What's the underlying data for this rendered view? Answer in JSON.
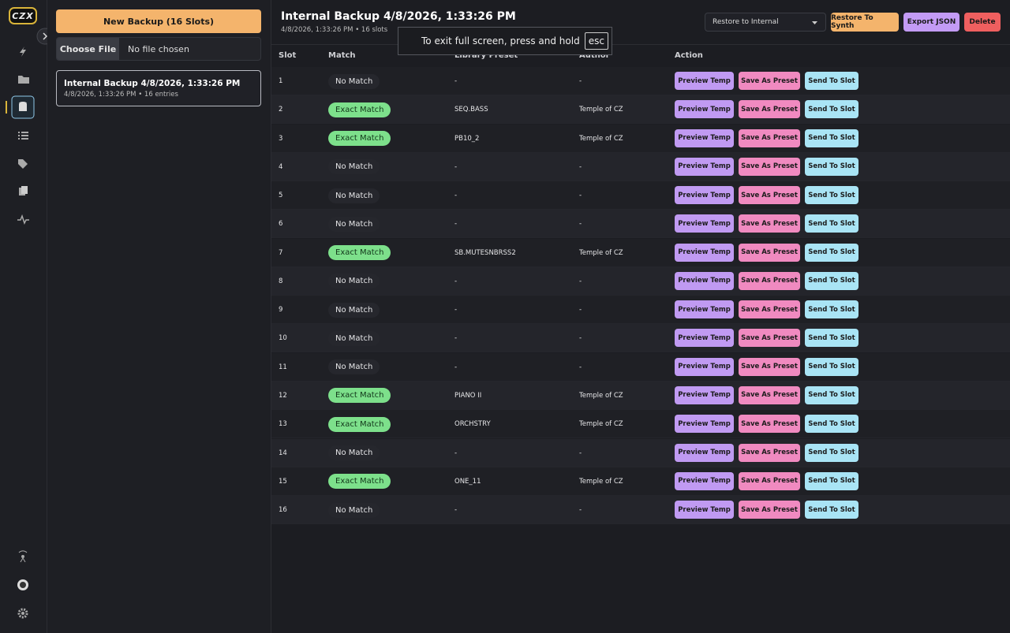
{
  "logo": "CZX",
  "panel": {
    "new_backup": "New Backup (16 Slots)",
    "choose_file": "Choose File",
    "no_file": "No file chosen",
    "backups": [
      {
        "title": "Internal Backup 4/8/2026, 1:33:26 PM",
        "subtitle": "4/8/2026, 1:33:26 PM • 16 entries"
      }
    ]
  },
  "header": {
    "title": "Internal Backup 4/8/2026, 1:33:26 PM",
    "subtitle": "4/8/2026, 1:33:26 PM • 16 slots",
    "restore_select": "Restore to Internal",
    "buttons": [
      "Restore To Synth",
      "Export JSON",
      "Delete"
    ]
  },
  "overlay": {
    "text": "To exit full screen, press and hold",
    "key": "esc"
  },
  "table": {
    "columns": [
      "Slot",
      "Match",
      "Library Preset",
      "Author",
      "Action"
    ],
    "actions": [
      "Preview Temp",
      "Save As Preset",
      "Send To Slot"
    ],
    "rows": [
      [
        1,
        "No Match",
        "-",
        "-"
      ],
      [
        2,
        "Exact Match",
        "SEQ.BASS",
        "Temple of CZ"
      ],
      [
        3,
        "Exact Match",
        "PB10_2",
        "Temple of CZ"
      ],
      [
        4,
        "No Match",
        "-",
        "-"
      ],
      [
        5,
        "No Match",
        "-",
        "-"
      ],
      [
        6,
        "No Match",
        "-",
        "-"
      ],
      [
        7,
        "Exact Match",
        "SB.MUTESNBRSS2",
        "Temple of CZ"
      ],
      [
        8,
        "No Match",
        "-",
        "-"
      ],
      [
        9,
        "No Match",
        "-",
        "-"
      ],
      [
        10,
        "No Match",
        "-",
        "-"
      ],
      [
        11,
        "No Match",
        "-",
        "-"
      ],
      [
        12,
        "Exact Match",
        "PIANO II",
        "Temple of CZ"
      ],
      [
        13,
        "Exact Match",
        "ORCHSTRY",
        "Temple of CZ"
      ],
      [
        14,
        "No Match",
        "-",
        "-"
      ],
      [
        15,
        "Exact Match",
        "ONE_11",
        "Temple of CZ"
      ],
      [
        16,
        "No Match",
        "-",
        "-"
      ]
    ]
  }
}
